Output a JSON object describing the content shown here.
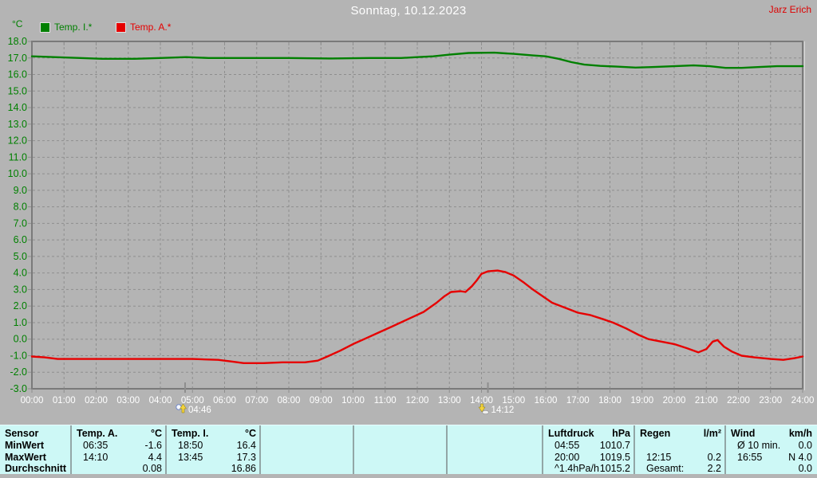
{
  "header": {
    "title": "Sonntag, 10.12.2023",
    "station": "Jarz Erich"
  },
  "colors": {
    "background": "#b4b4b4",
    "grid": "#8e8e8e",
    "frame": "#7a7a7a",
    "temp_i": "#008000",
    "temp_a": "#e60000",
    "x_labels": "#ffffff",
    "y_labels": "#008000",
    "table_bg": "#cdf8f6",
    "station_text": "#dd0000",
    "title_text": "#ffffff"
  },
  "chart_data": {
    "type": "line",
    "title": "Sonntag, 10.12.2023",
    "y_label": "°C",
    "y_range": [
      -3,
      18
    ],
    "y_step": 1,
    "x_range": [
      0,
      24
    ],
    "grid": true,
    "x_ticks": [
      "00:00",
      "01:00",
      "02:00",
      "03:00",
      "04:00",
      "05:00",
      "06:00",
      "07:00",
      "08:00",
      "09:00",
      "10:00",
      "11:00",
      "12:00",
      "13:00",
      "14:00",
      "15:00",
      "16:00",
      "17:00",
      "18:00",
      "19:00",
      "20:00",
      "21:00",
      "22:00",
      "23:00",
      "24:00"
    ],
    "series": [
      {
        "name": "Temp. I.*",
        "color": "#008000",
        "points": [
          [
            0,
            17.1
          ],
          [
            0.7,
            17.05
          ],
          [
            1.5,
            17.0
          ],
          [
            2.2,
            16.95
          ],
          [
            3.2,
            16.95
          ],
          [
            4,
            17.0
          ],
          [
            4.8,
            17.05
          ],
          [
            5.5,
            17.0
          ],
          [
            6.5,
            17.0
          ],
          [
            8,
            17.0
          ],
          [
            9.3,
            16.97
          ],
          [
            10.5,
            17.0
          ],
          [
            11.5,
            17.0
          ],
          [
            12,
            17.05
          ],
          [
            12.5,
            17.1
          ],
          [
            13,
            17.2
          ],
          [
            13.6,
            17.3
          ],
          [
            14.4,
            17.32
          ],
          [
            15,
            17.25
          ],
          [
            15.6,
            17.15
          ],
          [
            16,
            17.1
          ],
          [
            16.4,
            16.95
          ],
          [
            16.8,
            16.75
          ],
          [
            17.2,
            16.6
          ],
          [
            17.7,
            16.52
          ],
          [
            18.2,
            16.48
          ],
          [
            18.8,
            16.42
          ],
          [
            19.3,
            16.45
          ],
          [
            20,
            16.5
          ],
          [
            20.6,
            16.55
          ],
          [
            21.1,
            16.5
          ],
          [
            21.6,
            16.4
          ],
          [
            22.1,
            16.4
          ],
          [
            22.6,
            16.45
          ],
          [
            23.2,
            16.5
          ],
          [
            24,
            16.5
          ]
        ]
      },
      {
        "name": "Temp. A.*",
        "color": "#e60000",
        "points": [
          [
            0,
            -1.05
          ],
          [
            0.4,
            -1.1
          ],
          [
            0.8,
            -1.2
          ],
          [
            2,
            -1.2
          ],
          [
            3.5,
            -1.2
          ],
          [
            5,
            -1.2
          ],
          [
            5.8,
            -1.25
          ],
          [
            6.2,
            -1.35
          ],
          [
            6.6,
            -1.45
          ],
          [
            7.2,
            -1.45
          ],
          [
            7.8,
            -1.4
          ],
          [
            8.5,
            -1.4
          ],
          [
            8.9,
            -1.3
          ],
          [
            9.2,
            -1.05
          ],
          [
            9.6,
            -0.7
          ],
          [
            10,
            -0.3
          ],
          [
            10.4,
            0.05
          ],
          [
            10.8,
            0.4
          ],
          [
            11.2,
            0.75
          ],
          [
            11.7,
            1.2
          ],
          [
            12.2,
            1.65
          ],
          [
            12.6,
            2.2
          ],
          [
            12.85,
            2.6
          ],
          [
            13.05,
            2.85
          ],
          [
            13.35,
            2.9
          ],
          [
            13.5,
            2.85
          ],
          [
            13.7,
            3.2
          ],
          [
            13.85,
            3.55
          ],
          [
            14.0,
            3.95
          ],
          [
            14.2,
            4.1
          ],
          [
            14.5,
            4.15
          ],
          [
            14.75,
            4.05
          ],
          [
            15,
            3.85
          ],
          [
            15.3,
            3.45
          ],
          [
            15.6,
            3.0
          ],
          [
            15.9,
            2.6
          ],
          [
            16.2,
            2.2
          ],
          [
            16.6,
            1.9
          ],
          [
            17,
            1.6
          ],
          [
            17.4,
            1.45
          ],
          [
            17.8,
            1.2
          ],
          [
            18.1,
            1.0
          ],
          [
            18.5,
            0.65
          ],
          [
            18.9,
            0.25
          ],
          [
            19.2,
            0.0
          ],
          [
            19.6,
            -0.15
          ],
          [
            20,
            -0.3
          ],
          [
            20.4,
            -0.55
          ],
          [
            20.75,
            -0.8
          ],
          [
            21,
            -0.6
          ],
          [
            21.2,
            -0.15
          ],
          [
            21.35,
            -0.05
          ],
          [
            21.55,
            -0.45
          ],
          [
            21.8,
            -0.75
          ],
          [
            22.1,
            -1.0
          ],
          [
            22.5,
            -1.1
          ],
          [
            23,
            -1.2
          ],
          [
            23.4,
            -1.25
          ],
          [
            23.75,
            -1.15
          ],
          [
            24,
            -1.05
          ]
        ]
      }
    ],
    "annotations": [
      {
        "x": 4.77,
        "label": "04:46",
        "icon": "sunrise"
      },
      {
        "x": 14.2,
        "label": "14:12",
        "icon": "sunset"
      }
    ]
  },
  "legend": {
    "unit": "°C",
    "series": [
      {
        "label": "Temp. I.*",
        "color": "#008000"
      },
      {
        "label": "Temp. A.*",
        "color": "#e60000"
      }
    ]
  },
  "table": {
    "row_labels": [
      "Sensor",
      "MinWert",
      "MaxWert",
      "Durchschnitt"
    ],
    "columns": [
      {
        "name": "Temp. A.",
        "unit": "°C",
        "rows": [
          [
            "06:35",
            "-1.6"
          ],
          [
            "14:10",
            "4.4"
          ],
          [
            "",
            "0.08"
          ]
        ]
      },
      {
        "name": "Temp. I.",
        "unit": "°C",
        "rows": [
          [
            "18:50",
            "16.4"
          ],
          [
            "13:45",
            "17.3"
          ],
          [
            "",
            "16.86"
          ]
        ]
      },
      {
        "name": "",
        "unit": "",
        "rows": [
          [
            "",
            ""
          ],
          [
            "",
            ""
          ],
          [
            "",
            ""
          ]
        ]
      },
      {
        "name": "",
        "unit": "",
        "rows": [
          [
            "",
            ""
          ],
          [
            "",
            ""
          ],
          [
            "",
            ""
          ]
        ]
      },
      {
        "name": "",
        "unit": "",
        "rows": [
          [
            "",
            ""
          ],
          [
            "",
            ""
          ],
          [
            "",
            ""
          ]
        ]
      },
      {
        "name": "Luftdruck",
        "unit": "hPa",
        "rows": [
          [
            "04:55",
            "1010.7"
          ],
          [
            "20:00",
            "1019.5"
          ],
          [
            "^1.4hPa/h",
            "1015.2"
          ]
        ]
      },
      {
        "name": "Regen",
        "unit": "l/m²",
        "rows": [
          [
            "",
            ""
          ],
          [
            "12:15",
            "0.2"
          ],
          [
            "Gesamt:",
            "2.2"
          ]
        ]
      },
      {
        "name": "Wind",
        "unit": "km/h",
        "rows": [
          [
            "Ø 10 min.",
            "0.0"
          ],
          [
            "16:55",
            "N 4.0"
          ],
          [
            "",
            "0.0"
          ]
        ]
      }
    ]
  }
}
